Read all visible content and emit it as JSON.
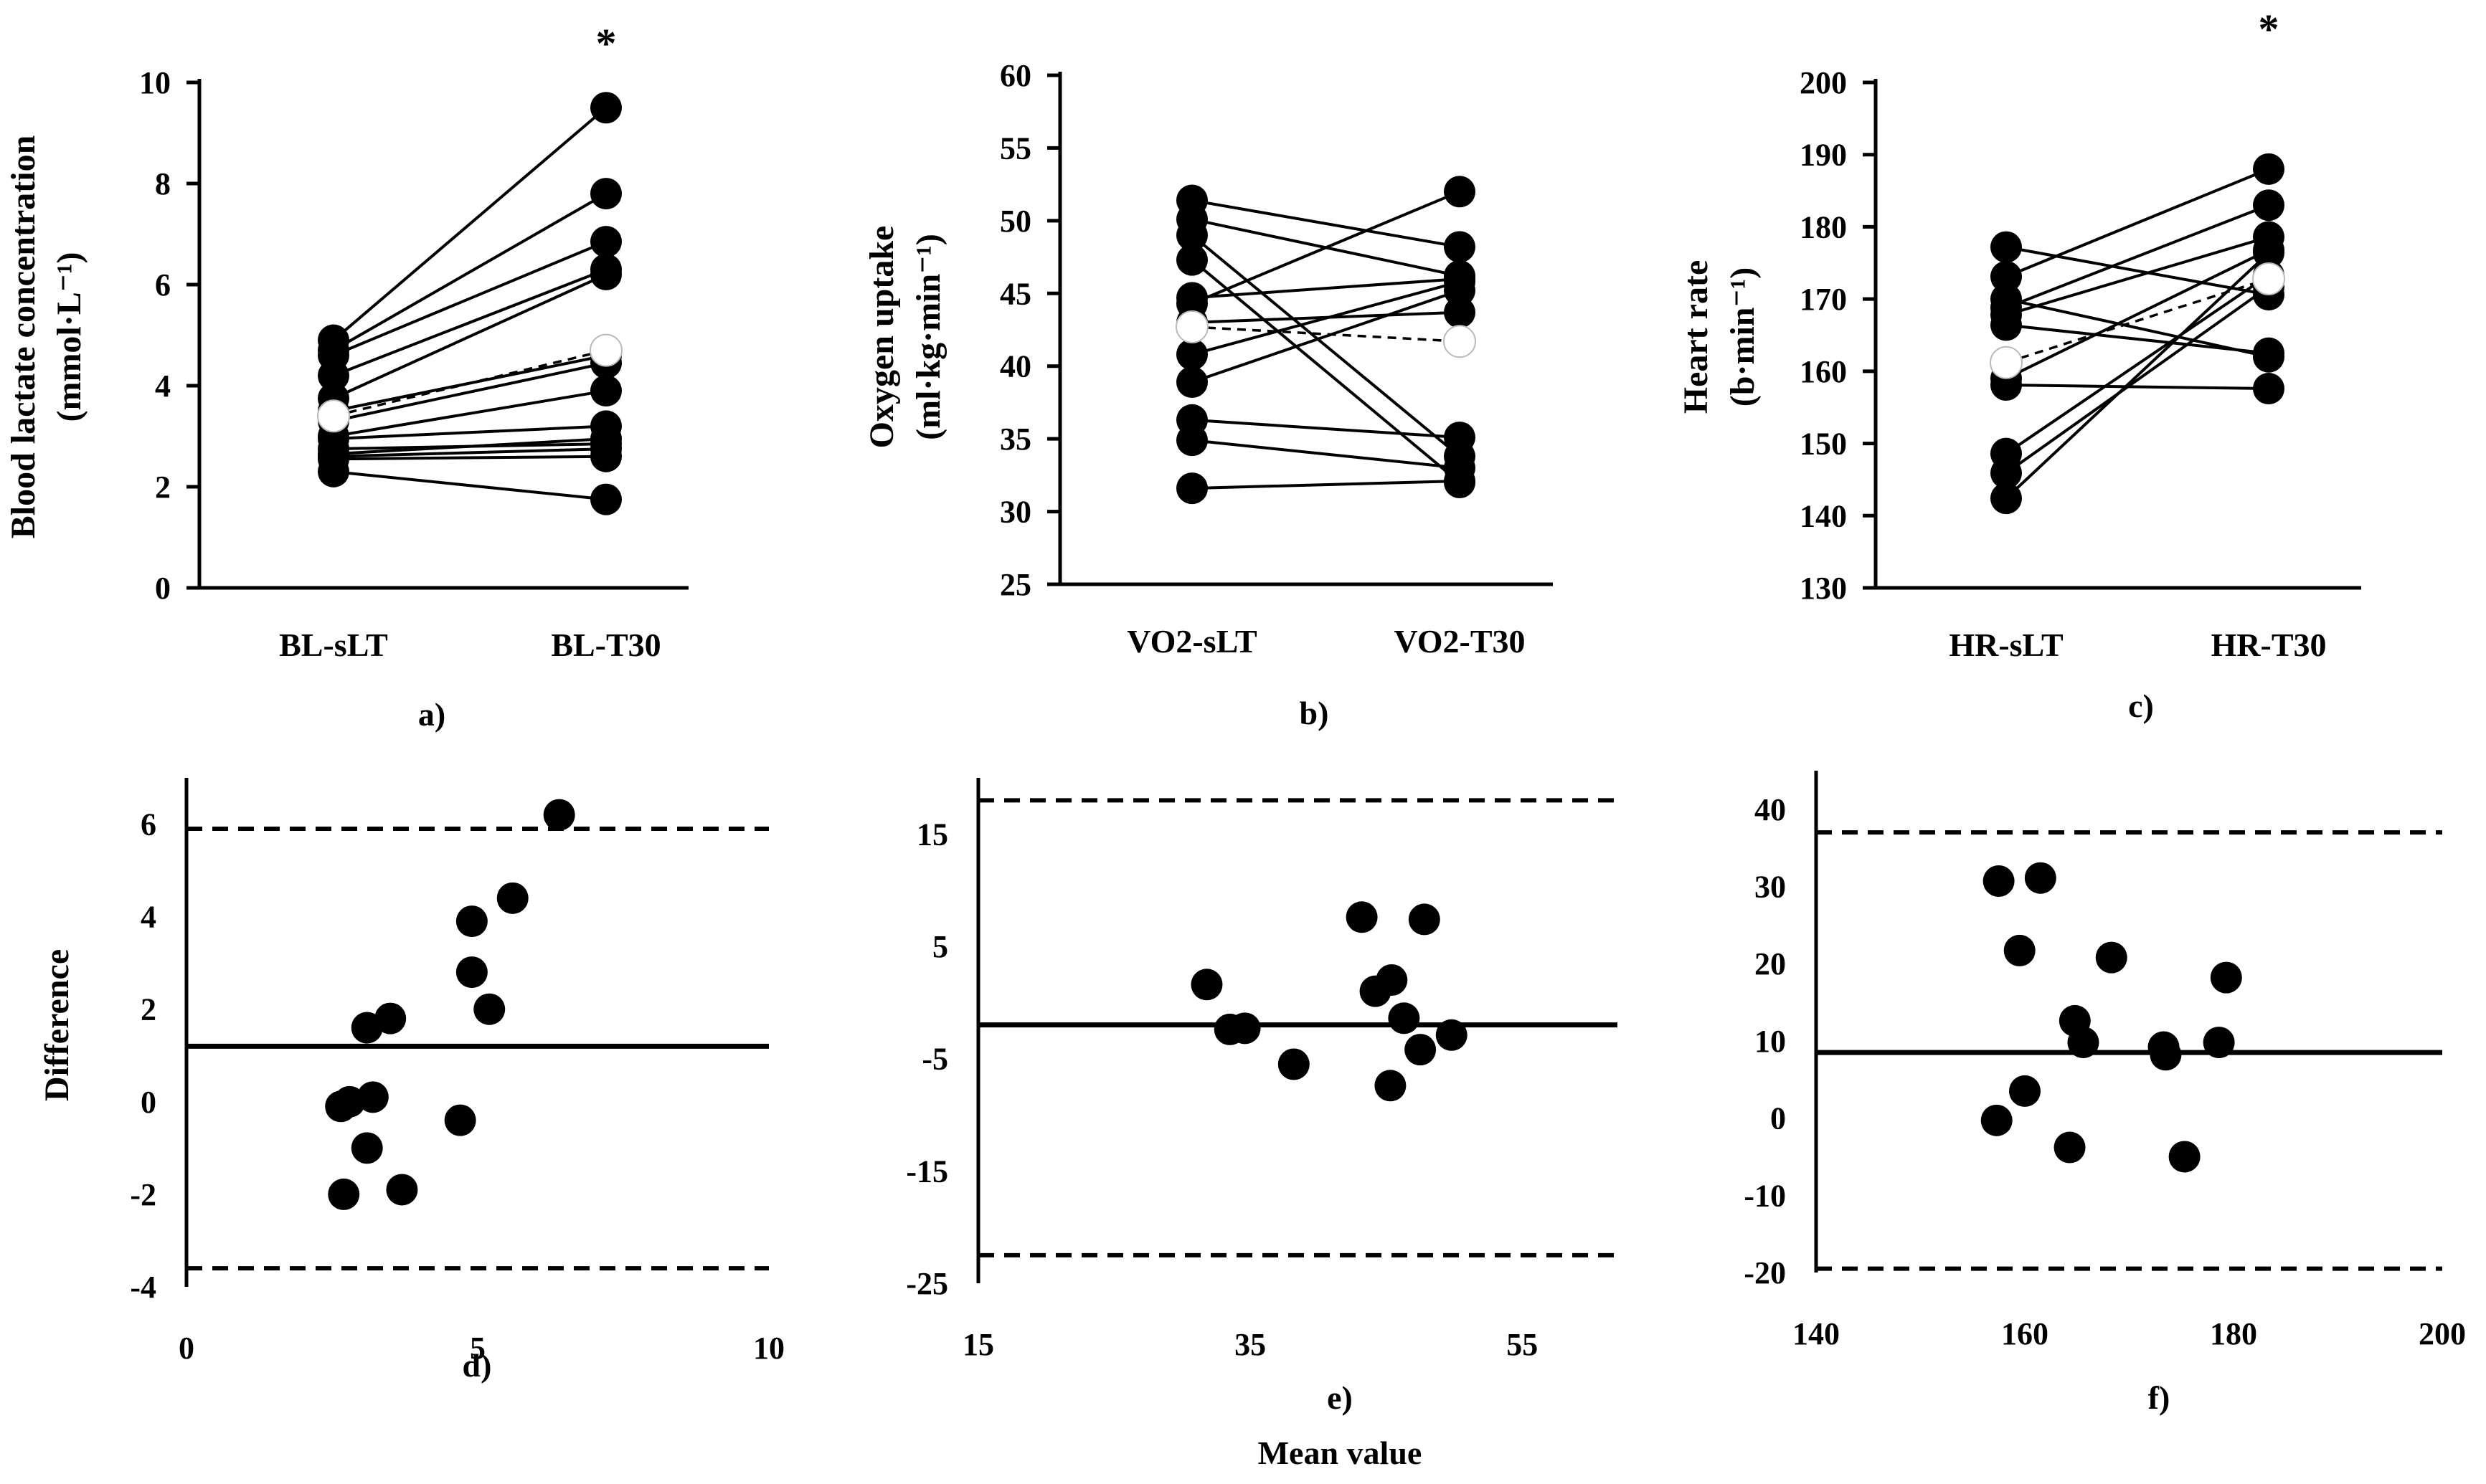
{
  "figure": {
    "mean_value_label": "Mean value"
  },
  "chart_data": [
    {
      "id": "a",
      "type": "scatter",
      "panel_label": "a)",
      "ylabel_line1": "Blood lactate concentration",
      "ylabel_line2": "(mmol·L⁻¹)",
      "categories": [
        "BL-sLT",
        "BL-T30"
      ],
      "ylim": [
        0,
        10
      ],
      "yticks": [
        0,
        2,
        4,
        6,
        8,
        10
      ],
      "significance_marker": "*",
      "pairs": [
        [
          4.9,
          9.5
        ],
        [
          4.7,
          7.8
        ],
        [
          4.6,
          6.85
        ],
        [
          4.2,
          6.3
        ],
        [
          3.75,
          6.2
        ],
        [
          3.5,
          4.6
        ],
        [
          3.3,
          4.45
        ],
        [
          3.0,
          3.9
        ],
        [
          2.95,
          3.2
        ],
        [
          2.75,
          2.85
        ],
        [
          2.6,
          2.75
        ],
        [
          2.55,
          2.6
        ],
        [
          2.3,
          1.75
        ],
        [
          2.65,
          2.95
        ]
      ],
      "mean": [
        3.4,
        4.7
      ]
    },
    {
      "id": "b",
      "type": "scatter",
      "panel_label": "b)",
      "ylabel_line1": "Oxygen uptake",
      "ylabel_line2": "(ml·kg·min⁻¹)",
      "categories": [
        "VO2-sLT",
        "VO2-T30"
      ],
      "ylim": [
        25,
        60
      ],
      "yticks": [
        25,
        30,
        35,
        40,
        45,
        50,
        55,
        60
      ],
      "pairs": [
        [
          51.4,
          48.2
        ],
        [
          50.1,
          46.2
        ],
        [
          49.0,
          33.8
        ],
        [
          47.3,
          32.0
        ],
        [
          44.7,
          46.0
        ],
        [
          44.3,
          52.0
        ],
        [
          40.8,
          45.8
        ],
        [
          38.9,
          45.2
        ],
        [
          36.3,
          35.1
        ],
        [
          34.9,
          33.0
        ],
        [
          31.6,
          32.1
        ],
        [
          43.0,
          43.7
        ]
      ],
      "mean": [
        42.7,
        41.7
      ]
    },
    {
      "id": "c",
      "type": "scatter",
      "panel_label": "c)",
      "ylabel_line1": "Heart rate",
      "ylabel_line2": "(b·min⁻¹)",
      "categories": [
        "HR-sLT",
        "HR-T30"
      ],
      "ylim": [
        130,
        200
      ],
      "yticks": [
        130,
        140,
        150,
        160,
        170,
        180,
        190,
        200
      ],
      "significance_marker": "*",
      "pairs": [
        [
          177.2,
          170.6
        ],
        [
          173.1,
          188.0
        ],
        [
          170.0,
          162.0
        ],
        [
          168.8,
          183.0
        ],
        [
          167.8,
          178.6
        ],
        [
          166.4,
          162.5
        ],
        [
          158.1,
          157.6
        ],
        [
          159.0,
          176.8
        ],
        [
          148.6,
          173.3
        ],
        [
          145.9,
          171.7
        ],
        [
          142.4,
          176.4
        ]
      ],
      "mean": [
        161.2,
        172.8
      ]
    },
    {
      "id": "d",
      "type": "scatter",
      "panel_label": "d)",
      "ylabel": "Difference",
      "xlim": [
        0,
        10
      ],
      "xticks": [
        0,
        5,
        10
      ],
      "ylim": [
        -4,
        7
      ],
      "yticks": [
        -4,
        -2,
        0,
        2,
        4,
        6
      ],
      "mean_line": 1.2,
      "upper_loa": 5.9,
      "lower_loa": -3.6,
      "points": [
        [
          6.4,
          6.2
        ],
        [
          5.6,
          4.4
        ],
        [
          4.9,
          3.9
        ],
        [
          4.9,
          2.8
        ],
        [
          5.2,
          2.0
        ],
        [
          3.5,
          1.8
        ],
        [
          3.1,
          1.6
        ],
        [
          3.2,
          0.1
        ],
        [
          2.65,
          -0.1
        ],
        [
          2.8,
          0.0
        ],
        [
          4.7,
          -0.4
        ],
        [
          3.1,
          -1.0
        ],
        [
          2.7,
          -2.0
        ],
        [
          3.7,
          -1.9
        ]
      ]
    },
    {
      "id": "e",
      "type": "scatter",
      "panel_label": "e)",
      "xlim": [
        15,
        62
      ],
      "xticks": [
        15,
        35,
        55
      ],
      "ylim": [
        -25,
        20
      ],
      "yticks": [
        -25,
        -15,
        -5,
        5,
        15
      ],
      "mean_line": -2.0,
      "upper_loa": 18.0,
      "lower_loa": -22.5,
      "points": [
        [
          31.8,
          1.6
        ],
        [
          33.5,
          -2.4
        ],
        [
          34.6,
          -2.3
        ],
        [
          38.2,
          -5.5
        ],
        [
          43.2,
          7.6
        ],
        [
          44.2,
          1.0
        ],
        [
          45.4,
          2.0
        ],
        [
          46.3,
          -1.4
        ],
        [
          47.8,
          7.4
        ],
        [
          49.8,
          -2.9
        ],
        [
          47.5,
          -4.2
        ],
        [
          45.3,
          -7.4
        ]
      ]
    },
    {
      "id": "f",
      "type": "scatter",
      "panel_label": "f)",
      "xlim": [
        140,
        200
      ],
      "xticks": [
        140,
        160,
        180,
        200
      ],
      "ylim": [
        -20,
        45
      ],
      "yticks": [
        -20,
        -10,
        0,
        10,
        20,
        30,
        40
      ],
      "mean_line": 8.5,
      "upper_loa": 37.0,
      "lower_loa": -19.5,
      "points": [
        [
          157.5,
          30.7
        ],
        [
          159.5,
          21.7
        ],
        [
          161.5,
          31.1
        ],
        [
          160.0,
          3.5
        ],
        [
          157.3,
          -0.3
        ],
        [
          164.3,
          -3.8
        ],
        [
          164.8,
          12.6
        ],
        [
          165.6,
          9.8
        ],
        [
          168.3,
          20.8
        ],
        [
          173.3,
          9.2
        ],
        [
          173.5,
          8.2
        ],
        [
          175.3,
          -5.0
        ],
        [
          178.6,
          9.8
        ],
        [
          179.3,
          18.2
        ]
      ]
    }
  ]
}
